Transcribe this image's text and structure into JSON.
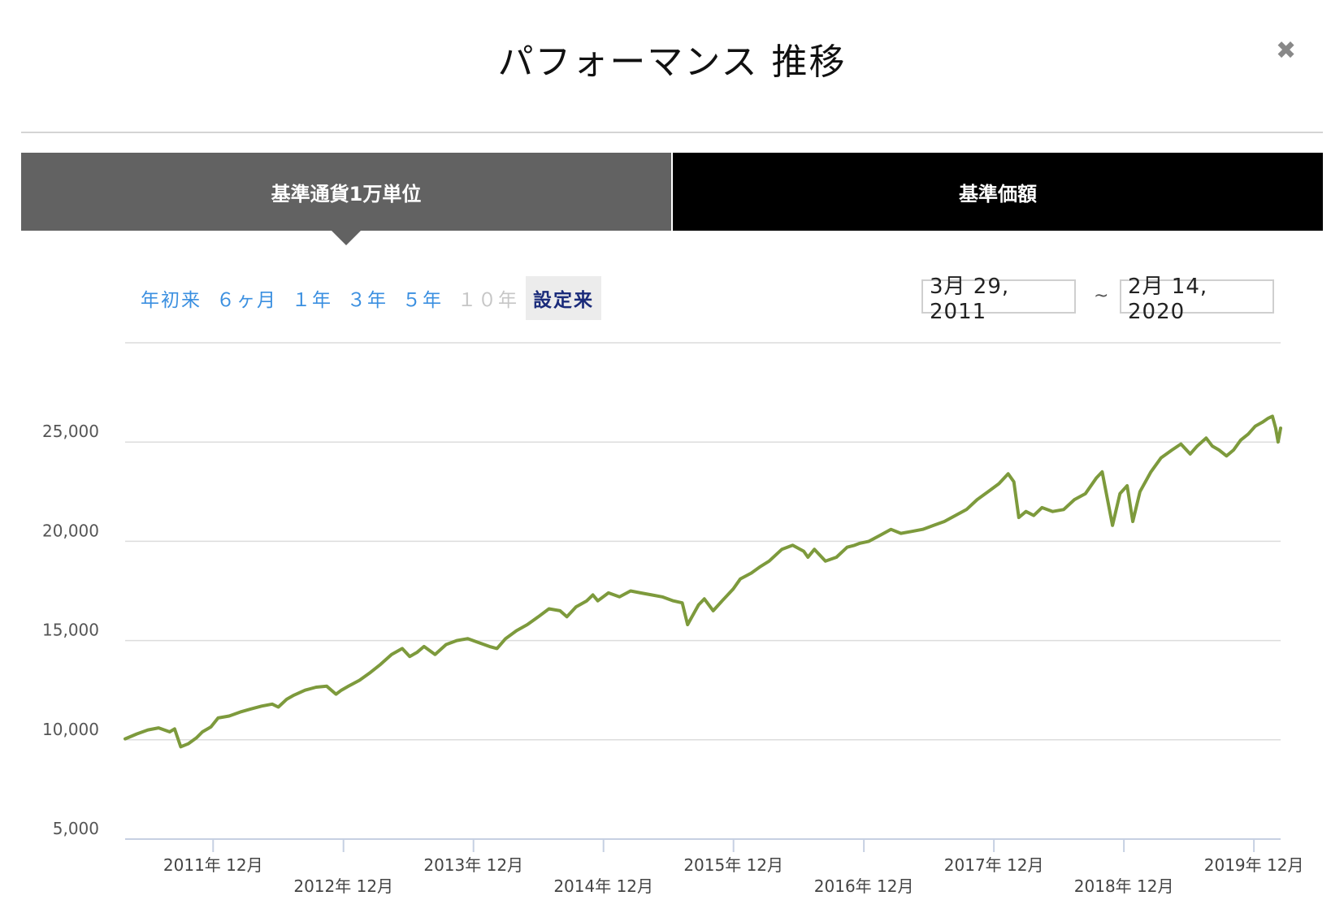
{
  "header": {
    "title": "パフォーマンス 推移",
    "close_icon": "close-icon"
  },
  "tabs": [
    {
      "label": "基準通貨1万単位",
      "active": true
    },
    {
      "label": "基準価額",
      "active": false
    }
  ],
  "ranges": [
    {
      "label": "年初来",
      "state": "enabled"
    },
    {
      "label": "６ヶ月",
      "state": "enabled"
    },
    {
      "label": "１年",
      "state": "enabled"
    },
    {
      "label": "３年",
      "state": "enabled"
    },
    {
      "label": "５年",
      "state": "enabled"
    },
    {
      "label": "１０年",
      "state": "disabled"
    },
    {
      "label": "設定来",
      "state": "active"
    }
  ],
  "date_range": {
    "start": "3月 29, 2011",
    "separator": "~",
    "end": "2月 14, 2020"
  },
  "colors": {
    "line": "#7d9a3c",
    "tab_active": "#626262",
    "tab_inactive": "#000000",
    "link": "#3a8fe0"
  },
  "chart_data": {
    "type": "line",
    "title": "",
    "xlabel": "",
    "ylabel": "",
    "ylim": [
      5000,
      30000
    ],
    "xlim": [
      "2011-03-29",
      "2020-02-14"
    ],
    "grid": true,
    "yticks": [
      {
        "value": 5000,
        "label": "5,000"
      },
      {
        "value": 10000,
        "label": "10,000"
      },
      {
        "value": 15000,
        "label": "15,000"
      },
      {
        "value": 20000,
        "label": "20,000"
      },
      {
        "value": 25000,
        "label": "25,000"
      }
    ],
    "xticks": [
      {
        "date": "2011-12-01",
        "label": "2011年 12月"
      },
      {
        "date": "2012-12-01",
        "label": "2012年 12月"
      },
      {
        "date": "2013-12-01",
        "label": "2013年 12月"
      },
      {
        "date": "2014-12-01",
        "label": "2014年 12月"
      },
      {
        "date": "2015-12-01",
        "label": "2015年 12月"
      },
      {
        "date": "2016-12-01",
        "label": "2016年 12月"
      },
      {
        "date": "2017-12-01",
        "label": "2017年 12月"
      },
      {
        "date": "2018-12-01",
        "label": "2018年 12月"
      },
      {
        "date": "2019-12-01",
        "label": "2019年 12月"
      }
    ],
    "series": [
      {
        "x": [
          "2011-03-29",
          "2011-05-01",
          "2011-06-01",
          "2011-07-01",
          "2011-08-01",
          "2011-08-15",
          "2011-09-01",
          "2011-09-22",
          "2011-10-15",
          "2011-11-01",
          "2011-11-25",
          "2011-12-15",
          "2012-01-15",
          "2012-02-15",
          "2012-03-15",
          "2012-04-15",
          "2012-05-15",
          "2012-06-01",
          "2012-06-25",
          "2012-07-15",
          "2012-08-15",
          "2012-09-15",
          "2012-10-15",
          "2012-11-10",
          "2012-11-25",
          "2012-12-15",
          "2013-01-15",
          "2013-02-15",
          "2013-03-15",
          "2013-04-15",
          "2013-05-15",
          "2013-06-05",
          "2013-06-25",
          "2013-07-15",
          "2013-08-15",
          "2013-09-15",
          "2013-10-15",
          "2013-11-15",
          "2013-12-15",
          "2014-01-15",
          "2014-02-05",
          "2014-03-01",
          "2014-04-01",
          "2014-05-01",
          "2014-06-01",
          "2014-07-01",
          "2014-08-01",
          "2014-08-20",
          "2014-09-15",
          "2014-10-15",
          "2014-11-01",
          "2014-11-15",
          "2014-12-15",
          "2015-01-15",
          "2015-02-15",
          "2015-03-15",
          "2015-04-15",
          "2015-05-15",
          "2015-06-15",
          "2015-07-10",
          "2015-07-25",
          "2015-08-25",
          "2015-09-10",
          "2015-10-05",
          "2015-10-30",
          "2015-11-30",
          "2015-12-20",
          "2016-01-20",
          "2016-02-12",
          "2016-03-10",
          "2016-04-15",
          "2016-05-15",
          "2016-06-15",
          "2016-06-27",
          "2016-07-15",
          "2016-08-15",
          "2016-09-15",
          "2016-10-15",
          "2016-11-05",
          "2016-11-20",
          "2016-12-15",
          "2017-01-15",
          "2017-02-15",
          "2017-03-15",
          "2017-04-15",
          "2017-05-15",
          "2017-06-15",
          "2017-07-15",
          "2017-08-15",
          "2017-09-15",
          "2017-10-15",
          "2017-11-15",
          "2017-12-15",
          "2018-01-10",
          "2018-01-26",
          "2018-02-09",
          "2018-03-01",
          "2018-03-23",
          "2018-04-15",
          "2018-05-15",
          "2018-06-15",
          "2018-07-15",
          "2018-08-15",
          "2018-09-15",
          "2018-10-01",
          "2018-10-30",
          "2018-11-20",
          "2018-12-10",
          "2018-12-26",
          "2019-01-15",
          "2019-02-15",
          "2019-03-15",
          "2019-04-15",
          "2019-05-10",
          "2019-06-05",
          "2019-06-25",
          "2019-07-20",
          "2019-08-06",
          "2019-08-25",
          "2019-09-15",
          "2019-10-05",
          "2019-10-25",
          "2019-11-15",
          "2019-12-05",
          "2019-12-25",
          "2020-01-10",
          "2020-01-22",
          "2020-01-31",
          "2020-02-07",
          "2020-02-14"
        ],
        "y": [
          10050,
          10300,
          10500,
          10600,
          10400,
          10550,
          9650,
          9800,
          10100,
          10400,
          10650,
          11100,
          11200,
          11400,
          11550,
          11700,
          11800,
          11650,
          12050,
          12250,
          12500,
          12650,
          12700,
          12300,
          12500,
          12700,
          13000,
          13400,
          13800,
          14300,
          14600,
          14200,
          14400,
          14700,
          14300,
          14800,
          15000,
          15100,
          14900,
          14700,
          14600,
          15100,
          15500,
          15800,
          16200,
          16600,
          16500,
          16200,
          16700,
          17000,
          17300,
          17000,
          17400,
          17200,
          17500,
          17400,
          17300,
          17200,
          17000,
          16900,
          15800,
          16800,
          17100,
          16500,
          17000,
          17600,
          18100,
          18400,
          18700,
          19000,
          19600,
          19800,
          19500,
          19200,
          19600,
          19000,
          19200,
          19700,
          19800,
          19900,
          20000,
          20300,
          20600,
          20400,
          20500,
          20600,
          20800,
          21000,
          21300,
          21600,
          22100,
          22500,
          22900,
          23400,
          23000,
          21200,
          21500,
          21300,
          21700,
          21500,
          21600,
          22100,
          22400,
          23200,
          23500,
          20800,
          22400,
          22800,
          21000,
          22500,
          23500,
          24200,
          24600,
          24900,
          24400,
          24800,
          25200,
          24800,
          24600,
          24300,
          24600,
          25100,
          25400,
          25800,
          26000,
          26200,
          26300,
          25700,
          25000,
          25700
        ]
      }
    ]
  }
}
